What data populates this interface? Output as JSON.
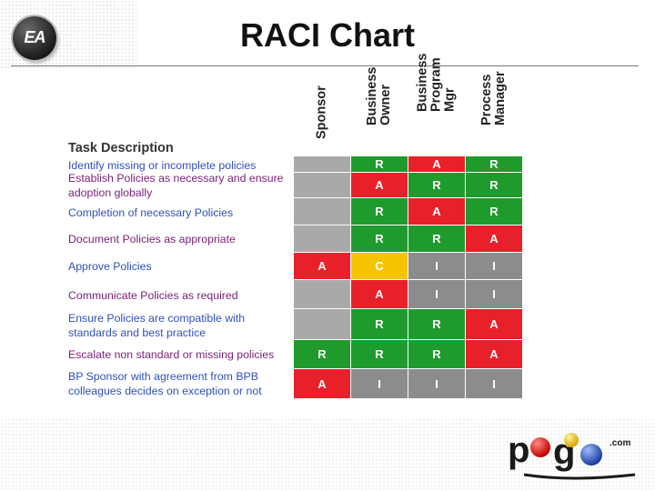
{
  "header": {
    "title": "RACI Chart",
    "logo_text": "EA"
  },
  "columns": [
    "Sponsor",
    "Business\nOwner",
    "Business\nProgram\nMgr",
    "Process\nManager"
  ],
  "task_heading": "Task Description",
  "colors": {
    "R": "#1f9a2c",
    "A": "#e8202a",
    "C": "#f5c400",
    "I": "#8c8c8c",
    "empty": "#a9a9a9"
  },
  "rows": [
    {
      "label": "Identify missing or incomplete policies",
      "cells": [
        "",
        "R",
        "A",
        "R"
      ]
    },
    {
      "label": "Establish Policies as necessary and ensure adoption globally",
      "cells": [
        "",
        "A",
        "R",
        "R"
      ]
    },
    {
      "label": "Completion of necessary Policies",
      "cells": [
        "",
        "R",
        "A",
        "R"
      ]
    },
    {
      "label": "Document Policies as appropriate",
      "cells": [
        "",
        "R",
        "R",
        "A"
      ]
    },
    {
      "label": "Approve Policies",
      "cells": [
        "A",
        "C",
        "I",
        "I"
      ]
    },
    {
      "label": "Communicate Policies as required",
      "cells": [
        "",
        "A",
        "I",
        "I"
      ]
    },
    {
      "label": "Ensure Policies are compatible with standards and best practice",
      "cells": [
        "",
        "R",
        "R",
        "A"
      ]
    },
    {
      "label": "Escalate non standard or missing policies",
      "cells": [
        "R",
        "R",
        "R",
        "A"
      ]
    },
    {
      "label": "BP Sponsor with agreement from BPB colleagues decides on exception or not",
      "cells": [
        "A",
        "I",
        "I",
        "I"
      ]
    }
  ],
  "footer_logo": {
    "text": "pogo",
    "suffix": ".com"
  }
}
